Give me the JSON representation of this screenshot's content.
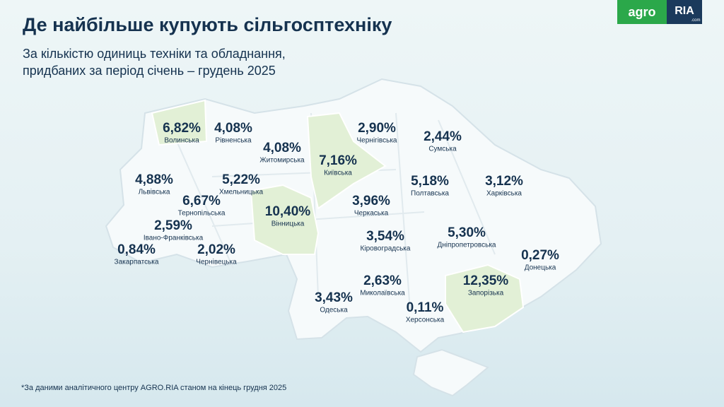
{
  "header": {
    "title": "Де найбільше купують сільгосптехніку",
    "subtitle_lines": [
      "За кількістю одиниць техніки та обладнання,",
      "придбаних за період січень – грудень 2025"
    ]
  },
  "logo": {
    "agro": "agro",
    "ria": "RIA",
    "com": ".com"
  },
  "regions": [
    {
      "name": "Волинська",
      "share": "6,82%",
      "highlight": true
    },
    {
      "name": "Рівненська",
      "share": "4,08%",
      "highlight": false
    },
    {
      "name": "Житомирська",
      "share": "4,08%",
      "highlight": false
    },
    {
      "name": "Київська",
      "share": "7,16%",
      "highlight": true
    },
    {
      "name": "Чернігівська",
      "share": "2,90%",
      "highlight": false
    },
    {
      "name": "Сумська",
      "share": "2,44%",
      "highlight": false
    },
    {
      "name": "Львівська",
      "share": "4,88%",
      "highlight": false
    },
    {
      "name": "Хмельницька",
      "share": "5,22%",
      "highlight": false
    },
    {
      "name": "Тернопільська",
      "share": "6,67%",
      "highlight": false
    },
    {
      "name": "Вінницька",
      "share": "10,40%",
      "highlight": true
    },
    {
      "name": "Черкаська",
      "share": "3,96%",
      "highlight": false
    },
    {
      "name": "Полтавська",
      "share": "5,18%",
      "highlight": false
    },
    {
      "name": "Харківська",
      "share": "3,12%",
      "highlight": false
    },
    {
      "name": "Івано-Франківська",
      "share": "2,59%",
      "highlight": false
    },
    {
      "name": "Закарпатська",
      "share": "0,84%",
      "highlight": false
    },
    {
      "name": "Чернівецька",
      "share": "2,02%",
      "highlight": false
    },
    {
      "name": "Кіровоградська",
      "share": "3,54%",
      "highlight": false
    },
    {
      "name": "Дніпропетровська",
      "share": "5,30%",
      "highlight": false
    },
    {
      "name": "Донецька",
      "share": "0,27%",
      "highlight": false
    },
    {
      "name": "Миколаївська",
      "share": "2,63%",
      "highlight": false
    },
    {
      "name": "Запорізька",
      "share": "12,35%",
      "highlight": true
    },
    {
      "name": "Одеська",
      "share": "3,43%",
      "highlight": false
    },
    {
      "name": "Херсонська",
      "share": "0,11%",
      "highlight": false
    }
  ],
  "footnote": "*За даними аналітичного центру AGRO.RIA станом на кінець грудня 2025"
}
